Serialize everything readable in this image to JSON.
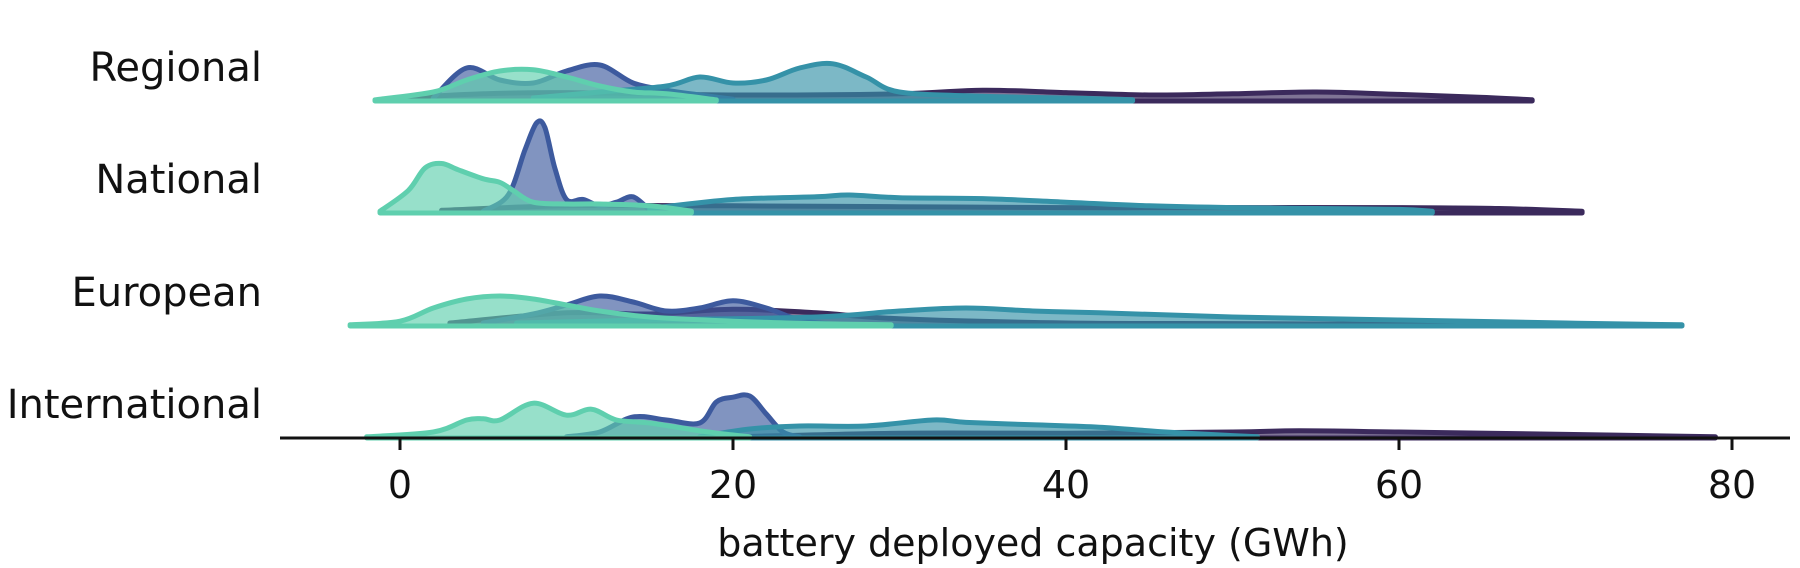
{
  "chart_data": {
    "type": "ridgeline",
    "title": "",
    "xlabel": "battery deployed capacity (GWh)",
    "ylabel": "",
    "xlim": [
      -12,
      83
    ],
    "xticks": [
      0,
      20,
      40,
      60,
      80
    ],
    "grid": false,
    "legend": "none",
    "colors": [
      "#3b2a5c",
      "#3d5a9e",
      "#3592a8",
      "#5fcfae"
    ],
    "rows": [
      {
        "label": "Regional",
        "max_height": 60,
        "series": [
          {
            "color": "#3b2a5c",
            "x": [
              0,
              5,
              10,
              20,
              30,
              35,
              40,
              45,
              50,
              55,
              60,
              65,
              68
            ],
            "y": [
              0.05,
              0.12,
              0.14,
              0.1,
              0.12,
              0.18,
              0.14,
              0.1,
              0.12,
              0.15,
              0.11,
              0.06,
              0.02
            ]
          },
          {
            "color": "#3d5a9e",
            "x": [
              2,
              4,
              6,
              8,
              10,
              12,
              14,
              16,
              18,
              20
            ],
            "y": [
              0.05,
              0.55,
              0.35,
              0.3,
              0.5,
              0.6,
              0.3,
              0.18,
              0.1,
              0.03
            ]
          },
          {
            "color": "#3592a8",
            "x": [
              8,
              12,
              16,
              18,
              20,
              22,
              24,
              26,
              28,
              30,
              35,
              40,
              44
            ],
            "y": [
              0.05,
              0.15,
              0.25,
              0.4,
              0.3,
              0.35,
              0.55,
              0.62,
              0.4,
              0.15,
              0.08,
              0.05,
              0.02
            ]
          },
          {
            "color": "#5fcfae",
            "x": [
              -1.5,
              2,
              4,
              6,
              8,
              10,
              12,
              14,
              16,
              19
            ],
            "y": [
              0.02,
              0.15,
              0.35,
              0.5,
              0.52,
              0.4,
              0.25,
              0.15,
              0.12,
              0.02
            ]
          }
        ]
      },
      {
        "label": "National",
        "max_height": 90,
        "series": [
          {
            "color": "#3b2a5c",
            "x": [
              2.5,
              10,
              20,
              30,
              40,
              50,
              60,
              66,
              71
            ],
            "y": [
              0.03,
              0.08,
              0.08,
              0.07,
              0.06,
              0.06,
              0.06,
              0.05,
              0.02
            ]
          },
          {
            "color": "#3d5a9e",
            "x": [
              5,
              6.5,
              7.5,
              8.2,
              8.7,
              9.3,
              10,
              11,
              12,
              13,
              14,
              15
            ],
            "y": [
              0.02,
              0.2,
              0.7,
              1.0,
              0.95,
              0.5,
              0.15,
              0.15,
              0.08,
              0.12,
              0.18,
              0.03
            ]
          },
          {
            "color": "#3592a8",
            "x": [
              15,
              20,
              25,
              27,
              30,
              35,
              40,
              45,
              50,
              55,
              60,
              62
            ],
            "y": [
              0.05,
              0.15,
              0.18,
              0.2,
              0.17,
              0.16,
              0.12,
              0.08,
              0.06,
              0.05,
              0.04,
              0.02
            ]
          },
          {
            "color": "#5fcfae",
            "x": [
              -1.2,
              0.5,
              1.5,
              2.5,
              3.5,
              5,
              6,
              6.8,
              8,
              10,
              12,
              15,
              17.5
            ],
            "y": [
              0.02,
              0.25,
              0.5,
              0.55,
              0.48,
              0.38,
              0.34,
              0.25,
              0.12,
              0.1,
              0.1,
              0.08,
              0.02
            ]
          }
        ]
      },
      {
        "label": "European",
        "max_height": 60,
        "series": [
          {
            "color": "#3b2a5c",
            "x": [
              3,
              10,
              15,
              20,
              25,
              30,
              40,
              50,
              60,
              70,
              72
            ],
            "y": [
              0.05,
              0.22,
              0.2,
              0.28,
              0.22,
              0.12,
              0.05,
              0.04,
              0.03,
              0.02,
              0.01
            ]
          },
          {
            "color": "#3d5a9e",
            "x": [
              5,
              8,
              10,
              12,
              14,
              16,
              18,
              20,
              22,
              24,
              26
            ],
            "y": [
              0.05,
              0.2,
              0.35,
              0.5,
              0.4,
              0.25,
              0.3,
              0.42,
              0.3,
              0.1,
              0.03
            ]
          },
          {
            "color": "#3592a8",
            "x": [
              7,
              15,
              25,
              30,
              34,
              38,
              42,
              50,
              60,
              70,
              77
            ],
            "y": [
              0.05,
              0.1,
              0.15,
              0.25,
              0.3,
              0.25,
              0.22,
              0.15,
              0.1,
              0.05,
              0.02
            ]
          },
          {
            "color": "#5fcfae",
            "x": [
              -3,
              0,
              2,
              4,
              6,
              8,
              10,
              12,
              15,
              20,
              25,
              29.5
            ],
            "y": [
              0.02,
              0.08,
              0.3,
              0.45,
              0.5,
              0.45,
              0.35,
              0.25,
              0.15,
              0.08,
              0.04,
              0.02
            ]
          }
        ]
      },
      {
        "label": "International",
        "max_height": 60,
        "series": [
          {
            "color": "#3b2a5c",
            "x": [
              20,
              30,
              40,
              50,
              54,
              60,
              70,
              79
            ],
            "y": [
              0.02,
              0.08,
              0.08,
              0.1,
              0.12,
              0.1,
              0.06,
              0.02
            ]
          },
          {
            "color": "#3d5a9e",
            "x": [
              10,
              12,
              14,
              16,
              18,
              19,
              20,
              21,
              22,
              23,
              24
            ],
            "y": [
              0.02,
              0.1,
              0.35,
              0.3,
              0.25,
              0.6,
              0.68,
              0.7,
              0.4,
              0.1,
              0.02
            ]
          },
          {
            "color": "#3592a8",
            "x": [
              18,
              21,
              24,
              28,
              32,
              34,
              38,
              42,
              46,
              50,
              51.5
            ],
            "y": [
              0.02,
              0.15,
              0.2,
              0.2,
              0.3,
              0.26,
              0.22,
              0.18,
              0.1,
              0.04,
              0.02
            ]
          },
          {
            "color": "#5fcfae",
            "x": [
              -2,
              2,
              4,
              5,
              6,
              8,
              10,
              11.5,
              13,
              15,
              18,
              20,
              21
            ],
            "y": [
              0.02,
              0.1,
              0.3,
              0.32,
              0.3,
              0.58,
              0.38,
              0.48,
              0.3,
              0.25,
              0.12,
              0.05,
              0.02
            ]
          }
        ]
      }
    ]
  }
}
